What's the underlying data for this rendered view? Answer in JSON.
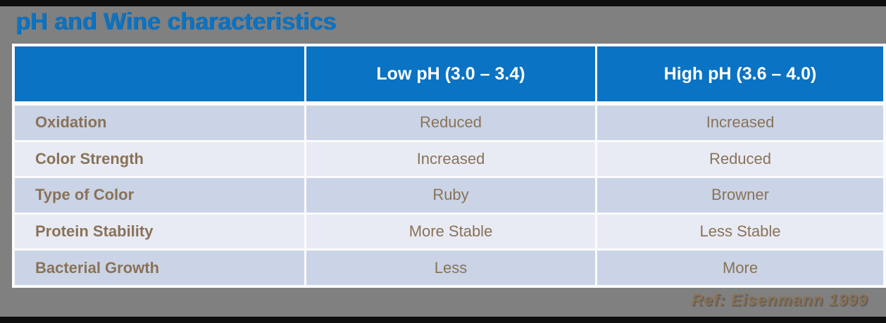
{
  "title": "pH and Wine characteristics",
  "table": {
    "columns": [
      "",
      "Low pH (3.0 – 3.4)",
      "High pH (3.6 – 4.0)"
    ],
    "rows": [
      {
        "label": "Oxidation",
        "low": "Reduced",
        "high": "Increased"
      },
      {
        "label": "Color Strength",
        "low": "Increased",
        "high": "Reduced"
      },
      {
        "label": "Type of Color",
        "low": "Ruby",
        "high": "Browner"
      },
      {
        "label": "Protein Stability",
        "low": "More Stable",
        "high": "Less Stable"
      },
      {
        "label": "Bacterial Growth",
        "low": "Less",
        "high": "More"
      }
    ]
  },
  "footer": {
    "reference": "Ref: Eisenmann 1999"
  },
  "colors": {
    "header_blue": "#0a73c3",
    "title_blue": "#0d73c1",
    "row_dark": "#cad4e6",
    "row_light": "#e8ebf4",
    "text_brown": "#8a7257",
    "slide_gray": "#808080",
    "edge_black": "#0e0e0e"
  }
}
